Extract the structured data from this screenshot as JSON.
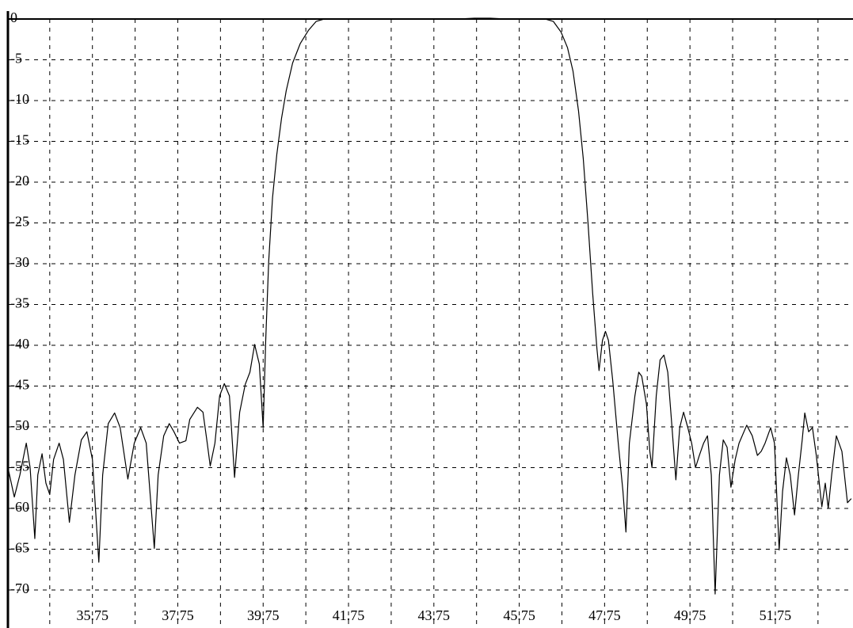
{
  "chart_data": {
    "type": "line",
    "x": [
      33.77,
      33.92,
      34.05,
      34.2,
      34.29,
      34.4,
      34.47,
      34.57,
      34.66,
      34.75,
      34.84,
      34.97,
      35.07,
      35.21,
      35.34,
      35.49,
      35.62,
      35.75,
      35.9,
      35.99,
      36.12,
      36.27,
      36.4,
      36.58,
      36.73,
      36.88,
      37.01,
      37.2,
      37.29,
      37.42,
      37.55,
      37.66,
      37.79,
      37.94,
      38.03,
      38.21,
      38.34,
      38.44,
      38.51,
      38.62,
      38.73,
      38.84,
      38.96,
      39.08,
      39.2,
      39.33,
      39.44,
      39.55,
      39.66,
      39.75,
      39.81,
      39.88,
      39.97,
      40.07,
      40.18,
      40.29,
      40.44,
      40.62,
      40.81,
      40.99,
      41.18,
      41.36,
      42.84,
      44.33,
      44.7,
      45.07,
      45.44,
      46.36,
      46.55,
      46.73,
      46.88,
      47.01,
      47.14,
      47.25,
      47.36,
      47.47,
      47.57,
      47.62,
      47.7,
      47.77,
      47.84,
      47.94,
      48.07,
      48.18,
      48.25,
      48.33,
      48.46,
      48.55,
      48.62,
      48.73,
      48.81,
      48.86,
      48.96,
      49.05,
      49.14,
      49.23,
      49.33,
      49.42,
      49.51,
      49.6,
      49.7,
      49.79,
      49.88,
      49.97,
      50.07,
      50.16,
      50.25,
      50.34,
      50.44,
      50.53,
      50.62,
      50.71,
      50.81,
      50.9,
      51.08,
      51.21,
      51.33,
      51.42,
      51.51,
      51.64,
      51.73,
      51.84,
      51.92,
      52.01,
      52.1,
      52.2,
      52.29,
      52.38,
      52.44,
      52.53,
      52.62,
      52.71,
      52.84,
      52.92,
      52.99,
      53.07,
      53.18,
      53.31,
      53.44,
      53.53
    ],
    "series": [
      {
        "color": "#000000",
        "values": [
          -55.0,
          -58.6,
          -55.9,
          -52.0,
          -55.0,
          -63.7,
          -55.9,
          -53.3,
          -56.9,
          -58.3,
          -54.0,
          -52.0,
          -54.0,
          -61.7,
          -55.9,
          -51.6,
          -50.6,
          -54.0,
          -66.6,
          -55.9,
          -49.6,
          -48.3,
          -50.1,
          -56.4,
          -52.0,
          -50.1,
          -52.0,
          -64.9,
          -55.9,
          -51.1,
          -49.6,
          -50.6,
          -52.0,
          -51.7,
          -49.1,
          -47.6,
          -48.2,
          -52.0,
          -54.8,
          -52.0,
          -46.2,
          -44.7,
          -46.2,
          -56.2,
          -48.2,
          -44.8,
          -43.3,
          -39.9,
          -42.3,
          -50.1,
          -39.4,
          -29.7,
          -21.9,
          -16.6,
          -12.2,
          -8.8,
          -5.4,
          -3.0,
          -1.4,
          -0.3,
          0.0,
          0.0,
          0.0,
          0.0,
          0.1,
          0.1,
          0.0,
          0.0,
          -0.3,
          -1.6,
          -3.5,
          -6.4,
          -11.3,
          -17.1,
          -24.9,
          -33.6,
          -40.4,
          -43.1,
          -39.4,
          -38.3,
          -39.4,
          -44.3,
          -52.0,
          -57.9,
          -62.9,
          -52.0,
          -46.2,
          -43.3,
          -43.8,
          -47.2,
          -53.0,
          -55.0,
          -46.2,
          -41.8,
          -41.2,
          -43.3,
          -50.1,
          -56.5,
          -50.1,
          -48.2,
          -50.1,
          -52.0,
          -55.0,
          -53.5,
          -52.0,
          -51.1,
          -55.9,
          -70.5,
          -55.9,
          -51.6,
          -52.5,
          -57.4,
          -54.0,
          -52.0,
          -49.8,
          -51.1,
          -53.5,
          -53.0,
          -52.0,
          -50.1,
          -52.0,
          -65.1,
          -57.9,
          -53.8,
          -55.9,
          -60.8,
          -55.9,
          -51.6,
          -48.3,
          -50.6,
          -50.1,
          -53.5,
          -59.8,
          -56.9,
          -60.0,
          -55.9,
          -51.1,
          -53.0,
          -59.3,
          -58.8
        ]
      }
    ],
    "xlim": [
      33.77,
      53.57
    ],
    "ylim": [
      -74.66,
      0
    ],
    "xticks": [
      35.75,
      37.75,
      39.75,
      41.75,
      43.75,
      45.75,
      47.75,
      49.75,
      51.75
    ],
    "xminor": [
      34.75,
      36.75,
      38.75,
      40.75,
      42.75,
      44.75,
      46.75,
      48.75,
      50.75,
      52.75
    ],
    "yticks": [
      0,
      -5,
      -10,
      -15,
      -20,
      -25,
      -30,
      -35,
      -40,
      -45,
      -50,
      -55,
      -60,
      -65,
      -70
    ],
    "grid": true
  }
}
